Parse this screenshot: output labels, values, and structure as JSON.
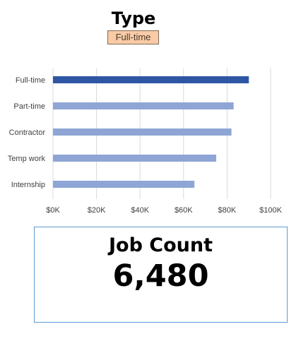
{
  "header": {
    "title": "Type",
    "filter_value": "Full-time"
  },
  "chart_data": {
    "type": "bar",
    "orientation": "horizontal",
    "categories": [
      "Full-time",
      "Part-time",
      "Contractor",
      "Temp work",
      "Internship"
    ],
    "values": [
      90000,
      83000,
      82000,
      75000,
      65000
    ],
    "highlighted_category": "Full-time",
    "xlim": [
      0,
      100000
    ],
    "x_ticks": [
      0,
      20000,
      40000,
      60000,
      80000,
      100000
    ],
    "x_tick_labels": [
      "$0K",
      "$20K",
      "$40K",
      "$60K",
      "$80K",
      "$100K"
    ],
    "grid": "vertical",
    "colors": {
      "highlight": "#2e56a4",
      "default": "#8ea5d6",
      "grid": "#d9d9d9"
    }
  },
  "kpi": {
    "label": "Job Count",
    "value": "6,480",
    "border_color": "#5b9bd5"
  }
}
